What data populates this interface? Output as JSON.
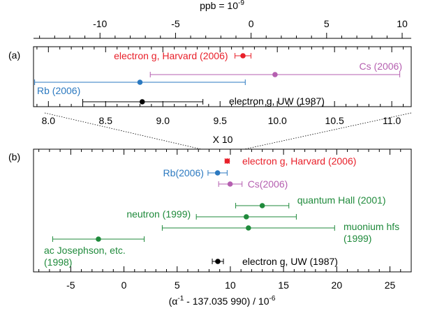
{
  "chart_data": [
    {
      "id": "a",
      "type": "scatter",
      "panel_label": "(a)",
      "top_axis": {
        "label": "ppb = 10",
        "label_exp": "-9",
        "range": [
          -14.4,
          10.6
        ],
        "ticks": [
          -10,
          -5,
          0,
          5,
          10
        ],
        "tick_labels": [
          "-10",
          "-5",
          "0",
          "5",
          "10"
        ]
      },
      "x_axis": {
        "range": [
          7.87,
          11.17
        ],
        "ticks": [
          8.0,
          8.5,
          9.0,
          9.5,
          10.0,
          10.5,
          11.0
        ],
        "tick_labels": [
          "8.0",
          "8.5",
          "9.0",
          "9.5",
          "10.0",
          "10.5",
          "11.0"
        ],
        "label": "X 10"
      },
      "points": [
        {
          "label": "electron g, Harvard (2006)",
          "x": 9.7,
          "xerr_low": 9.63,
          "xerr_high": 9.77,
          "color": "#e8202a",
          "row": 0,
          "label_side": "left"
        },
        {
          "label": "Cs (2006)",
          "x": 9.98,
          "xerr_low": 8.89,
          "xerr_high": 11.07,
          "color": "#b55fb0",
          "row": 1,
          "label_side": "right"
        },
        {
          "label": "Rb (2006)",
          "x": 8.8,
          "xerr_low": 7.88,
          "xerr_high": 9.72,
          "color": "#2b79c0",
          "row": 2,
          "label_side": "left"
        },
        {
          "label": "electron g, UW (1987)",
          "x": 8.82,
          "xerr_low": 8.3,
          "xerr_high": 9.35,
          "color": "#000000",
          "row": 3,
          "label_side": "right"
        }
      ]
    },
    {
      "id": "b",
      "type": "scatter",
      "panel_label": "(b)",
      "x_axis": {
        "range": [
          -8.5,
          27
        ],
        "ticks": [
          -5,
          0,
          5,
          10,
          15,
          20,
          25
        ],
        "tick_labels": [
          "-5",
          "0",
          "5",
          "10",
          "15",
          "20",
          "25"
        ],
        "label_main": "(α",
        "label_exp1": "-1",
        "label_mid": " - 137.035 990) / 10",
        "label_exp2": "-6"
      },
      "points": [
        {
          "label": "electron g, Harvard (2006)",
          "x": 9.71,
          "xerr_low": 9.5,
          "xerr_high": 9.9,
          "color": "#e8202a",
          "row": 0,
          "label_lines": [
            "electron g, Harvard (2006)"
          ],
          "label_side": "right"
        },
        {
          "label": "Rb(2006)",
          "x": 8.8,
          "xerr_low": 7.9,
          "xerr_high": 9.7,
          "color": "#2b79c0",
          "row": 1,
          "label_lines": [
            "Rb(2006)"
          ],
          "label_side": "left"
        },
        {
          "label": "Cs(2006)",
          "x": 9.98,
          "xerr_low": 8.9,
          "xerr_high": 11.1,
          "color": "#b55fb0",
          "row": 2,
          "label_lines": [
            "Cs(2006)"
          ],
          "label_side": "right"
        },
        {
          "label": "quantum Hall (2001)",
          "x": 13.0,
          "xerr_low": 10.5,
          "xerr_high": 15.5,
          "color": "#1f8a3b",
          "row": 3,
          "label_lines": [
            "quantum Hall (2001)"
          ],
          "label_side": "right"
        },
        {
          "label": "neutron (1999)",
          "x": 11.5,
          "xerr_low": 6.8,
          "xerr_high": 16.2,
          "color": "#1f8a3b",
          "row": 4,
          "label_lines": [
            "neutron (1999)"
          ],
          "label_side": "left"
        },
        {
          "label": "muonium hfs (1999)",
          "x": 11.7,
          "xerr_low": 3.6,
          "xerr_high": 19.8,
          "color": "#1f8a3b",
          "row": 5,
          "label_lines": [
            "muonium hfs",
            "(1999)"
          ],
          "label_side": "right"
        },
        {
          "label": "ac Josephson, etc. (1998)",
          "x": -2.4,
          "xerr_low": -6.7,
          "xerr_high": 1.9,
          "color": "#1f8a3b",
          "row": 6,
          "label_lines": [
            "ac Josephson, etc.",
            "(1998)"
          ],
          "label_side": "below-left"
        },
        {
          "label": "electron g, UW (1987)",
          "x": 8.82,
          "xerr_low": 8.3,
          "xerr_high": 9.35,
          "color": "#000000",
          "row": 7,
          "label_lines": [
            "electron g, UW (1987)"
          ],
          "label_side": "right"
        }
      ]
    }
  ]
}
